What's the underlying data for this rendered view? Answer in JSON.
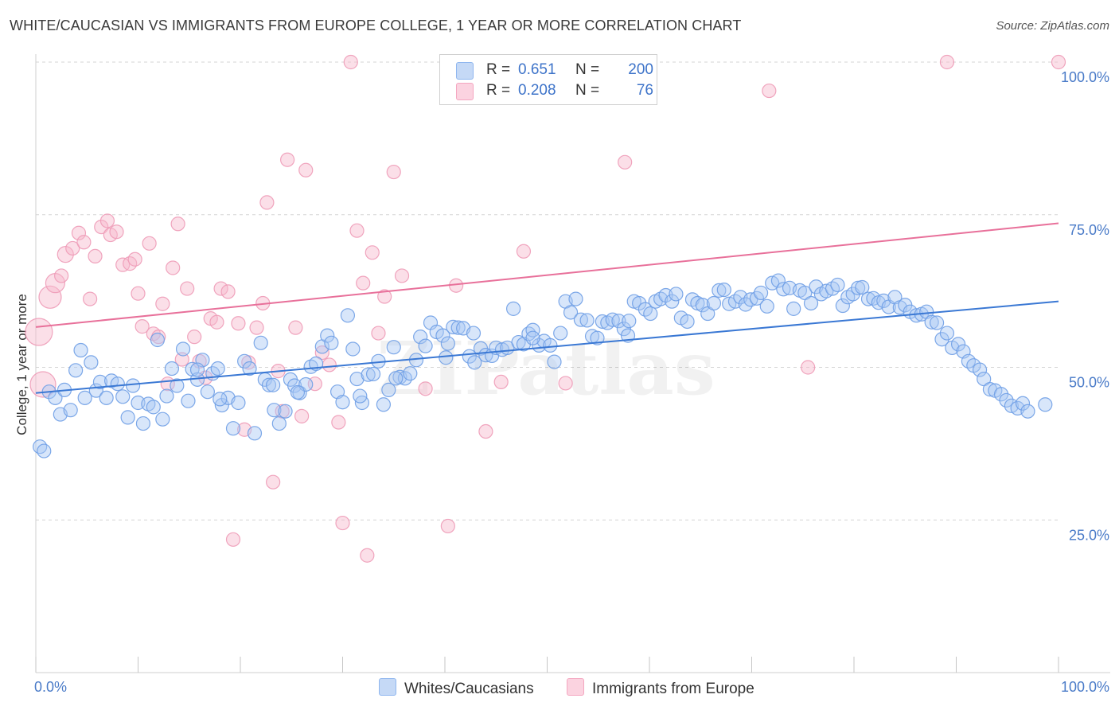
{
  "title": "WHITE/CAUCASIAN VS IMMIGRANTS FROM EUROPE COLLEGE, 1 YEAR OR MORE CORRELATION CHART",
  "source": "Source: ZipAtlas.com",
  "watermark": "ZIPatlas",
  "legend": {
    "items": [
      {
        "label": "Whites/Caucasians",
        "r_label": "R =",
        "r_value": "0.651",
        "n_label": "N =",
        "n_value": "200",
        "color": "#8fb6ef"
      },
      {
        "label": "Immigrants from Europe",
        "r_label": "R =",
        "r_value": "0.208",
        "n_label": "N =",
        "n_value": "76",
        "color": "#f4a6c0"
      }
    ]
  },
  "chart_data": {
    "type": "scatter",
    "title": "WHITE/CAUCASIAN VS IMMIGRANTS FROM EUROPE COLLEGE, 1 YEAR OR MORE CORRELATION CHART",
    "xlabel": "",
    "ylabel": "College, 1 year or more",
    "xlim": [
      0,
      100
    ],
    "ylim": [
      0,
      100
    ],
    "x_tick_labels": [
      "0.0%",
      "100.0%"
    ],
    "y_ticks": [
      25,
      50,
      75,
      100
    ],
    "y_tick_labels": [
      "25.0%",
      "50.0%",
      "75.0%",
      "100.0%"
    ],
    "grid": true,
    "legend_position": "top-center",
    "colors": {
      "blue": "#8fb6ef",
      "blue_line": "#3a78d4",
      "pink": "#f4a6c0",
      "pink_line": "#e8709a"
    },
    "series": [
      {
        "name": "Whites/Caucasians",
        "trend": {
          "x": [
            0,
            100
          ],
          "y": [
            45.8,
            60.8
          ]
        },
        "points": [
          [
            0.4,
            37
          ],
          [
            0.8,
            36.3
          ],
          [
            1.3,
            46
          ],
          [
            1.9,
            45
          ],
          [
            2.4,
            42.3
          ],
          [
            2.8,
            46.3
          ],
          [
            3.4,
            43
          ],
          [
            3.9,
            49.5
          ],
          [
            4.4,
            52.8
          ],
          [
            4.8,
            45
          ],
          [
            5.4,
            50.8
          ],
          [
            5.9,
            46.2
          ],
          [
            6.3,
            47.6
          ],
          [
            6.9,
            45
          ],
          [
            7.4,
            47.8
          ],
          [
            8,
            47.3
          ],
          [
            8.5,
            45.2
          ],
          [
            9,
            41.8
          ],
          [
            9.5,
            47
          ],
          [
            10,
            44.2
          ],
          [
            10.5,
            40.8
          ],
          [
            11,
            44
          ],
          [
            11.5,
            43.5
          ],
          [
            11.9,
            54.5
          ],
          [
            12.4,
            41.5
          ],
          [
            12.8,
            45.3
          ],
          [
            13.3,
            49.8
          ],
          [
            13.8,
            47
          ],
          [
            14.4,
            53
          ],
          [
            14.9,
            44.5
          ],
          [
            15.3,
            49.7
          ],
          [
            15.8,
            48
          ],
          [
            16.3,
            51.2
          ],
          [
            16.8,
            46
          ],
          [
            17.3,
            49
          ],
          [
            17.8,
            49.8
          ],
          [
            18.2,
            43.8
          ],
          [
            18.8,
            45
          ],
          [
            19.3,
            40
          ],
          [
            19.8,
            44.2
          ],
          [
            20.4,
            51
          ],
          [
            20.9,
            49.8
          ],
          [
            21.4,
            39.2
          ],
          [
            22,
            54
          ],
          [
            22.4,
            48
          ],
          [
            22.8,
            47.1
          ],
          [
            23.3,
            43
          ],
          [
            23.8,
            40.8
          ],
          [
            24.4,
            42.8
          ],
          [
            24.9,
            48
          ],
          [
            25.3,
            47
          ],
          [
            25.8,
            45.8
          ],
          [
            26.4,
            47.2
          ],
          [
            26.9,
            50.1
          ],
          [
            27.4,
            50.6
          ],
          [
            28,
            53.4
          ],
          [
            28.5,
            55.2
          ],
          [
            28.9,
            54
          ],
          [
            29.5,
            46
          ],
          [
            30,
            44.3
          ],
          [
            30.5,
            58.5
          ],
          [
            31,
            53
          ],
          [
            31.4,
            48.1
          ],
          [
            31.9,
            44.2
          ],
          [
            32.5,
            48.8
          ],
          [
            33,
            48.9
          ],
          [
            33.5,
            51
          ],
          [
            34,
            43.9
          ],
          [
            34.5,
            46.3
          ],
          [
            35,
            53.3
          ],
          [
            35.6,
            48.4
          ],
          [
            36.1,
            48.2
          ],
          [
            36.6,
            49
          ],
          [
            37.2,
            51.2
          ],
          [
            37.6,
            55
          ],
          [
            38.1,
            53.5
          ],
          [
            38.6,
            57.3
          ],
          [
            39.2,
            55.8
          ],
          [
            39.8,
            55.2
          ],
          [
            40.3,
            53.9
          ],
          [
            40.8,
            56.6
          ],
          [
            41.3,
            56.5
          ],
          [
            41.8,
            56.4
          ],
          [
            42.4,
            51.8
          ],
          [
            42.9,
            50.8
          ],
          [
            43.5,
            53.1
          ],
          [
            44,
            52
          ],
          [
            44.6,
            51.9
          ],
          [
            45,
            53.2
          ],
          [
            45.6,
            52.9
          ],
          [
            46.1,
            53.2
          ],
          [
            46.7,
            59.6
          ],
          [
            47.2,
            54.1
          ],
          [
            47.7,
            53.8
          ],
          [
            48.2,
            55.5
          ],
          [
            48.6,
            56.1
          ],
          [
            49.2,
            53.6
          ],
          [
            49.7,
            54.3
          ],
          [
            50.3,
            53.6
          ],
          [
            50.7,
            50.9
          ],
          [
            51.3,
            55.6
          ],
          [
            51.8,
            60.8
          ],
          [
            52.3,
            59
          ],
          [
            52.8,
            61.2
          ],
          [
            53.3,
            57.8
          ],
          [
            53.9,
            57.7
          ],
          [
            54.4,
            55.1
          ],
          [
            54.9,
            54.8
          ],
          [
            55.4,
            57.5
          ],
          [
            55.9,
            57.3
          ],
          [
            56.4,
            57.8
          ],
          [
            57,
            57.6
          ],
          [
            57.5,
            56.3
          ],
          [
            58,
            57.6
          ],
          [
            58.5,
            60.8
          ],
          [
            59,
            60.5
          ],
          [
            59.6,
            59.5
          ],
          [
            60.1,
            58.8
          ],
          [
            60.6,
            60.8
          ],
          [
            61.1,
            61.2
          ],
          [
            61.6,
            61.8
          ],
          [
            62.2,
            60.8
          ],
          [
            62.6,
            62
          ],
          [
            63.1,
            58.1
          ],
          [
            63.7,
            57.5
          ],
          [
            64.2,
            61.1
          ],
          [
            64.7,
            60.5
          ],
          [
            65.2,
            60.2
          ],
          [
            65.7,
            58.8
          ],
          [
            66.3,
            60.5
          ],
          [
            66.8,
            62.6
          ],
          [
            67.3,
            62.7
          ],
          [
            67.8,
            60.4
          ],
          [
            68.4,
            60.8
          ],
          [
            68.9,
            61.5
          ],
          [
            69.4,
            60.3
          ],
          [
            69.9,
            61.1
          ],
          [
            70.5,
            61.3
          ],
          [
            70.9,
            62.2
          ],
          [
            71.5,
            60
          ],
          [
            72,
            63.8
          ],
          [
            72.6,
            64.2
          ],
          [
            73.1,
            62.8
          ],
          [
            73.7,
            63
          ],
          [
            74.1,
            59.6
          ],
          [
            74.7,
            62.6
          ],
          [
            75.2,
            62.2
          ],
          [
            75.8,
            60.5
          ],
          [
            76.3,
            63.2
          ],
          [
            76.8,
            62
          ],
          [
            77.3,
            62.5
          ],
          [
            77.9,
            62.9
          ],
          [
            78.4,
            63.5
          ],
          [
            78.9,
            60.1
          ],
          [
            79.4,
            61.5
          ],
          [
            79.9,
            62
          ],
          [
            80.4,
            63
          ],
          [
            80.8,
            63.1
          ],
          [
            81.4,
            61.2
          ],
          [
            81.9,
            61.3
          ],
          [
            82.4,
            60.6
          ],
          [
            82.9,
            60.9
          ],
          [
            83.4,
            59.9
          ],
          [
            84,
            61.5
          ],
          [
            84.5,
            59.8
          ],
          [
            85,
            60.2
          ],
          [
            85.5,
            59.1
          ],
          [
            86.1,
            58.5
          ],
          [
            86.6,
            58.7
          ],
          [
            87.1,
            59.1
          ],
          [
            87.6,
            57.4
          ],
          [
            88.1,
            57.3
          ],
          [
            88.6,
            54.6
          ],
          [
            89.1,
            55.6
          ],
          [
            89.6,
            53.2
          ],
          [
            90.2,
            53.8
          ],
          [
            90.7,
            52.6
          ],
          [
            91.2,
            51
          ],
          [
            91.7,
            50.3
          ],
          [
            92.3,
            49.6
          ],
          [
            92.7,
            48.1
          ],
          [
            93.3,
            46.4
          ],
          [
            93.8,
            46.2
          ],
          [
            94.4,
            45.6
          ],
          [
            94.9,
            44.6
          ],
          [
            95.4,
            43.7
          ],
          [
            96,
            43.3
          ],
          [
            96.5,
            44.1
          ],
          [
            97,
            42.8
          ],
          [
            98.7,
            43.9
          ],
          [
            15.8,
            49.6
          ],
          [
            18,
            44.8
          ],
          [
            25.6,
            45.9
          ],
          [
            31.7,
            45.3
          ],
          [
            35.2,
            48.2
          ],
          [
            57.9,
            55.2
          ],
          [
            40.1,
            51.6
          ],
          [
            48.6,
            54.8
          ],
          [
            23.2,
            47.1
          ],
          [
            42.8,
            55.6
          ]
        ]
      },
      {
        "name": "Immigrants from Europe",
        "trend": {
          "x": [
            0,
            100
          ],
          "y": [
            56.6,
            73.6
          ]
        },
        "points": [
          [
            0.3,
            55.8
          ],
          [
            0.7,
            47.2
          ],
          [
            1.4,
            61.5
          ],
          [
            1.9,
            63.8
          ],
          [
            2.5,
            65
          ],
          [
            2.9,
            68.5
          ],
          [
            3.6,
            69.5
          ],
          [
            4.2,
            72
          ],
          [
            4.7,
            70.5
          ],
          [
            5.3,
            61.2
          ],
          [
            5.8,
            68.2
          ],
          [
            6.4,
            73
          ],
          [
            7,
            74
          ],
          [
            7.3,
            71.7
          ],
          [
            7.9,
            72.2
          ],
          [
            8.5,
            66.8
          ],
          [
            9.2,
            67
          ],
          [
            9.7,
            67.7
          ],
          [
            10,
            62.1
          ],
          [
            10.4,
            56.7
          ],
          [
            11.1,
            70.3
          ],
          [
            11.5,
            55.5
          ],
          [
            12,
            55
          ],
          [
            12.4,
            60.4
          ],
          [
            12.9,
            47.3
          ],
          [
            13.4,
            66.3
          ],
          [
            13.9,
            73.5
          ],
          [
            14.3,
            51.3
          ],
          [
            14.8,
            62.9
          ],
          [
            15.5,
            55
          ],
          [
            16,
            51
          ],
          [
            16.6,
            48.3
          ],
          [
            17.1,
            58
          ],
          [
            17.7,
            57.4
          ],
          [
            18.1,
            62.9
          ],
          [
            18.8,
            62.4
          ],
          [
            19.3,
            21.8
          ],
          [
            19.8,
            57.2
          ],
          [
            20.4,
            39.8
          ],
          [
            20.8,
            50.8
          ],
          [
            21.6,
            56.5
          ],
          [
            22.2,
            60.5
          ],
          [
            22.6,
            77
          ],
          [
            23.2,
            31.2
          ],
          [
            23.7,
            49.4
          ],
          [
            24.1,
            42.8
          ],
          [
            24.6,
            84
          ],
          [
            25.4,
            56.5
          ],
          [
            26,
            42
          ],
          [
            26.4,
            82.3
          ],
          [
            27.3,
            47.3
          ],
          [
            28,
            52.4
          ],
          [
            28.7,
            50.4
          ],
          [
            29.6,
            41
          ],
          [
            30,
            24.5
          ],
          [
            30.8,
            100
          ],
          [
            31.4,
            72.4
          ],
          [
            32,
            63.8
          ],
          [
            32.4,
            19.2
          ],
          [
            32.9,
            68.8
          ],
          [
            33.5,
            55.6
          ],
          [
            34.1,
            61.6
          ],
          [
            35,
            82
          ],
          [
            35.8,
            65
          ],
          [
            38.1,
            46.5
          ],
          [
            40.3,
            24
          ],
          [
            41.1,
            63.4
          ],
          [
            44,
            39.5
          ],
          [
            45.5,
            47.6
          ],
          [
            47.7,
            69
          ],
          [
            51.8,
            47.4
          ],
          [
            57.6,
            83.6
          ],
          [
            71.7,
            95.3
          ],
          [
            75.5,
            50
          ],
          [
            89.1,
            100
          ],
          [
            100,
            100
          ]
        ]
      }
    ]
  }
}
